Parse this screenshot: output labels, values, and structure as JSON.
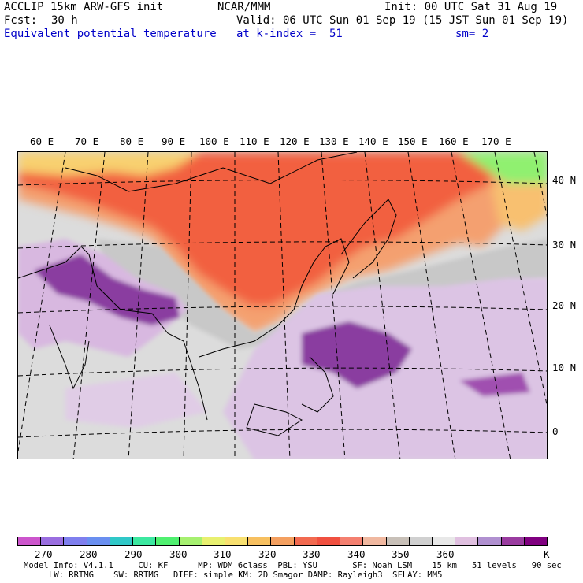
{
  "header": {
    "model": "ACCLIP 15km ARW-GFS init",
    "org": "NCAR/MMM",
    "init": "Init: 00 UTC Sat 31 Aug 19",
    "fcst_label": "Fcst:",
    "fcst_value": "30 h",
    "valid": "Valid: 06 UTC Sun 01 Sep 19 (15 JST Sun 01 Sep 19)",
    "field": "Equivalent potential temperature",
    "level": "at k-index =  51",
    "smooth": "sm= 2"
  },
  "map": {
    "lon_labels": [
      "60 E",
      "70 E",
      "80 E",
      "90 E",
      "100 E",
      "110 E",
      "120 E",
      "130 E",
      "140 E",
      "150 E",
      "160 E",
      "170 E"
    ],
    "lat_labels": [
      "40 N",
      "30 N",
      "20 N",
      "10 N",
      "0"
    ]
  },
  "colorbar": {
    "colors": [
      "#cc55cc",
      "#9a6ee0",
      "#7f7fee",
      "#6a8ff0",
      "#30c8c8",
      "#3ce8a0",
      "#50f070",
      "#a6f070",
      "#e8f070",
      "#f8e070",
      "#f7c060",
      "#f4a060",
      "#f26a50",
      "#f05040",
      "#f48070",
      "#f0b8a0",
      "#c8c0b8",
      "#d0d0d0",
      "#e8e8e8",
      "#e0c0e0",
      "#b090d0",
      "#9a3ca0",
      "#800080"
    ],
    "tick_labels": [
      "270",
      "280",
      "290",
      "300",
      "310",
      "320",
      "330",
      "340",
      "350",
      "360"
    ],
    "unit": "K"
  },
  "footer": {
    "line1": "Model Info: V4.1.1     CU: KF      MP: WDM 6class  PBL: YSU       SF: Noah LSM    15 km   51 levels   90 sec",
    "line2": "LW: RRTMG    SW: RRTMG   DIFF: simple KM: 2D Smagor DAMP: Rayleigh3  SFLAY: MM5"
  }
}
